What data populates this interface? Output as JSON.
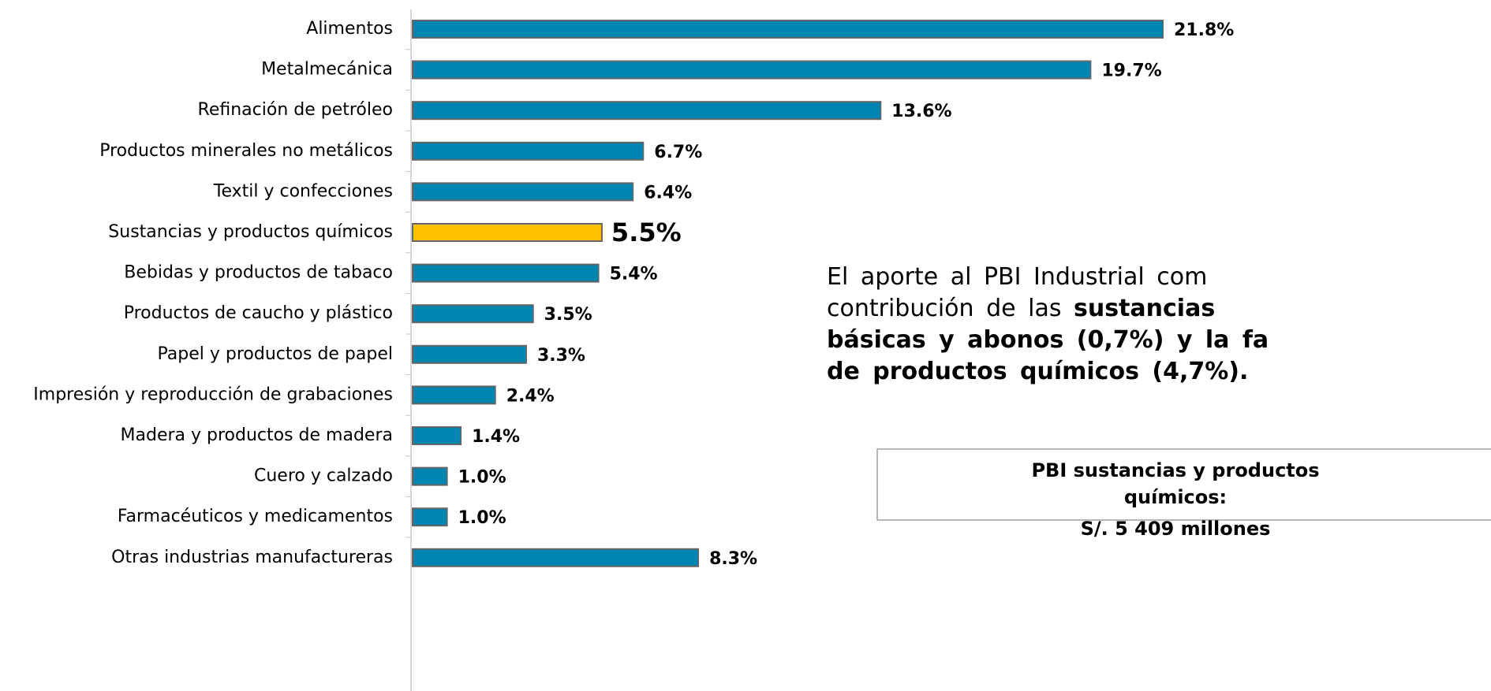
{
  "chart_data": {
    "type": "bar",
    "orientation": "horizontal",
    "categories": [
      "Alimentos",
      "Metalmecánica",
      "Refinación de petróleo",
      "Productos minerales no metálicos",
      "Textil y confecciones",
      "Sustancias y productos químicos",
      "Bebidas y productos de tabaco",
      "Productos de caucho y plástico",
      "Papel y productos de papel",
      "Impresión y reproducción de grabaciones",
      "Madera y productos de madera",
      "Cuero y calzado",
      "Farmacéuticos y medicamentos",
      "Otras industrias manufactureras"
    ],
    "values": [
      21.8,
      19.7,
      13.6,
      6.7,
      6.4,
      5.5,
      5.4,
      3.5,
      3.3,
      2.4,
      1.4,
      1.0,
      1.0,
      8.3
    ],
    "value_labels": [
      "21.8%",
      "19.7%",
      "13.6%",
      "6.7%",
      "6.4%",
      "5.5%",
      "5.4%",
      "3.5%",
      "3.3%",
      "2.4%",
      "1.4%",
      "1.0%",
      "1.0%",
      "8.3%"
    ],
    "colors": [
      "#0085b0",
      "#0085b0",
      "#0085b0",
      "#0085b0",
      "#0085b0",
      "#ffc000",
      "#0085b0",
      "#0085b0",
      "#0085b0",
      "#0085b0",
      "#0085b0",
      "#0085b0",
      "#0085b0",
      "#0085b0"
    ],
    "annotation": [
      [
        {
          "text": "El aporte al PBI Industrial com",
          "bold": false
        }
      ],
      [
        {
          "text": "contribución de las ",
          "bold": false
        },
        {
          "text": "sustancias",
          "bold": true
        }
      ],
      [
        {
          "text": "básicas y abonos (0,7%) y la fa",
          "bold": true
        }
      ],
      [
        {
          "text": "de productos químicos (4,7%).",
          "bold": true
        }
      ]
    ],
    "box": [
      "PBI sustancias y productos",
      "químicos:",
      "S/. 5 409 millones"
    ]
  }
}
